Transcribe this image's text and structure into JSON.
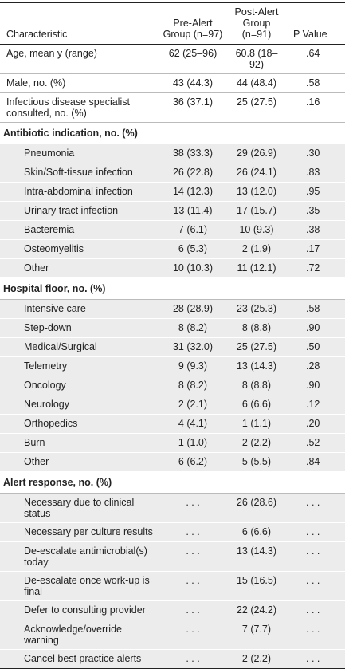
{
  "table": {
    "header": [
      "Characteristic",
      "Pre-Alert Group (n=97)",
      "Post-Alert Group (n=91)",
      "P Value"
    ],
    "rows": [
      [
        "Age, mean y (range)",
        "62 (25–96)",
        "60.8 (18–92)",
        ".64"
      ],
      [
        "Male, no. (%)",
        "43 (44.3)",
        "44 (48.4)",
        ".58"
      ],
      [
        "Infectious disease specialist consulted, no. (%)",
        "36 (37.1)",
        "25 (27.5)",
        ".16"
      ]
    ],
    "sections": [
      {
        "title": "Antibiotic indication, no. (%)",
        "rows": [
          [
            "Pneumonia",
            "38 (33.3)",
            "29 (26.9)",
            ".30"
          ],
          [
            "Skin/Soft-tissue infection",
            "26 (22.8)",
            "26 (24.1)",
            ".83"
          ],
          [
            "Intra-abdominal infection",
            "14 (12.3)",
            "13 (12.0)",
            ".95"
          ],
          [
            "Urinary tract infection",
            "13 (11.4)",
            "17 (15.7)",
            ".35"
          ],
          [
            "Bacteremia",
            "7 (6.1)",
            "10 (9.3)",
            ".38"
          ],
          [
            "Osteomyelitis",
            "6 (5.3)",
            "2 (1.9)",
            ".17"
          ],
          [
            "Other",
            "10 (10.3)",
            "11 (12.1)",
            ".72"
          ]
        ]
      },
      {
        "title": "Hospital floor, no. (%)",
        "rows": [
          [
            "Intensive care",
            "28 (28.9)",
            "23 (25.3)",
            ".58"
          ],
          [
            "Step-down",
            "8 (8.2)",
            "8 (8.8)",
            ".90"
          ],
          [
            "Medical/Surgical",
            "31 (32.0)",
            "25 (27.5)",
            ".50"
          ],
          [
            "Telemetry",
            "9 (9.3)",
            "13 (14.3)",
            ".28"
          ],
          [
            "Oncology",
            "8 (8.2)",
            "8 (8.8)",
            ".90"
          ],
          [
            "Neurology",
            "2 (2.1)",
            "6 (6.6)",
            ".12"
          ],
          [
            "Orthopedics",
            "4 (4.1)",
            "1 (1.1)",
            ".20"
          ],
          [
            "Burn",
            "1 (1.0)",
            "2 (2.2)",
            ".52"
          ],
          [
            "Other",
            "6 (6.2)",
            "5 (5.5)",
            ".84"
          ]
        ]
      },
      {
        "title": "Alert response, no. (%)",
        "rows": [
          [
            "Necessary due to clinical status",
            ". . .",
            "26 (28.6)",
            ". . ."
          ],
          [
            "Necessary per culture results",
            ". . .",
            "6 (6.6)",
            ". . ."
          ],
          [
            "De-escalate antimicrobial(s) today",
            ". . .",
            "13 (14.3)",
            ". . ."
          ],
          [
            "De-escalate once work-up is final",
            ". . .",
            "15 (16.5)",
            ". . ."
          ],
          [
            "Defer to consulting provider",
            ". . .",
            "22 (24.2)",
            ". . ."
          ],
          [
            "Acknowledge/override warning",
            ". . .",
            "7 (7.7)",
            ". . ."
          ],
          [
            "Cancel best practice alerts",
            ". . .",
            "2 (2.2)",
            ". . ."
          ]
        ]
      }
    ]
  }
}
